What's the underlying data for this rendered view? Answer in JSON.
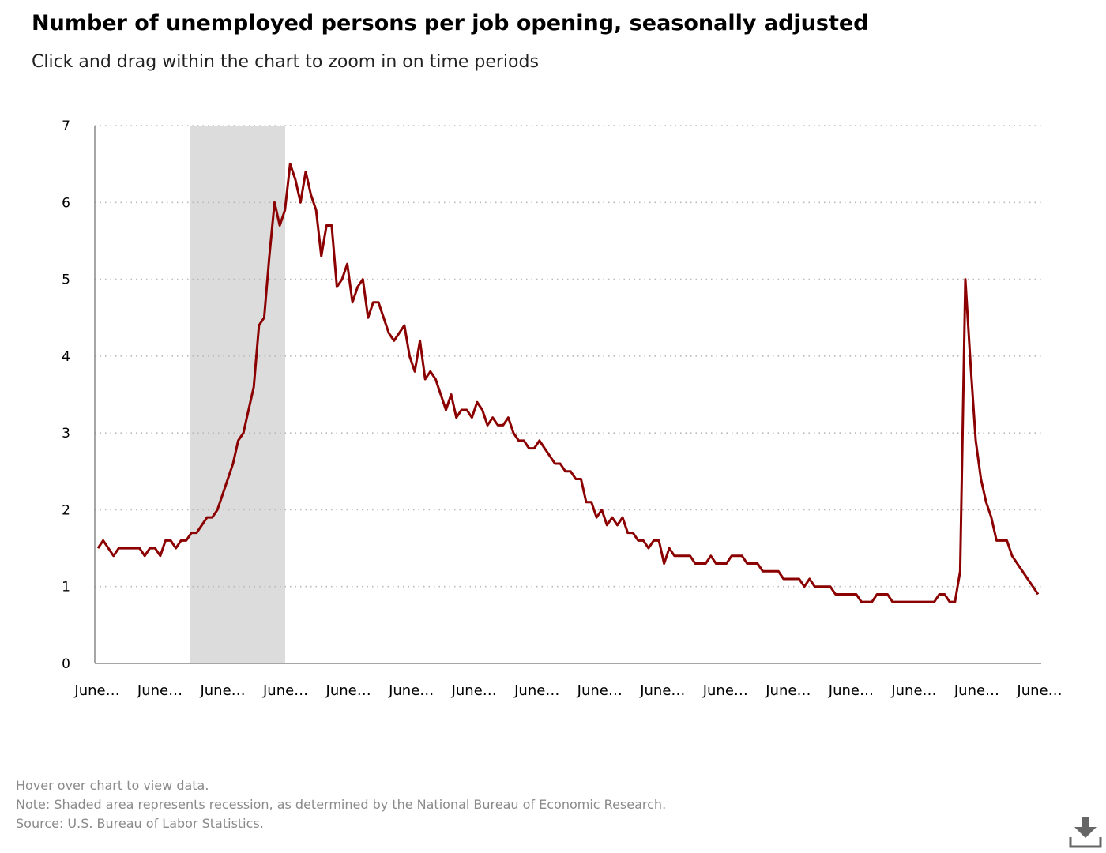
{
  "title": "Number of unemployed persons per job opening, seasonally adjusted",
  "subtitle": "Click and drag within the chart to zoom in on time periods",
  "notes": {
    "hover": "Hover over chart to view data.",
    "note": "Note: Shaded area represents recession, as determined by the National Bureau of Economic Research.",
    "source": "Source: U.S. Bureau of Labor Statistics."
  },
  "icons": {
    "download": "download-icon"
  },
  "colors": {
    "line": "#8b0000",
    "recession": "#dcdcdc",
    "grid": "#b8b8b8",
    "axis": "#888888"
  },
  "chart_data": {
    "type": "line",
    "title": "Number of unemployed persons per job opening, seasonally adjusted",
    "ylim": [
      0,
      7
    ],
    "y_ticks": [
      0,
      1,
      2,
      3,
      4,
      5,
      6,
      7
    ],
    "x_tick_labels": [
      "June…",
      "June…",
      "June…",
      "June…",
      "June…",
      "June…",
      "June…",
      "June…",
      "June…",
      "June…",
      "June…",
      "June…",
      "June…",
      "June…",
      "June…",
      "June…"
    ],
    "grid": true,
    "recession_shading": {
      "start_index": 18,
      "end_index": 36
    },
    "series": [
      {
        "values": [
          1.5,
          1.6,
          1.5,
          1.4,
          1.5,
          1.5,
          1.5,
          1.5,
          1.5,
          1.4,
          1.5,
          1.5,
          1.4,
          1.6,
          1.6,
          1.5,
          1.6,
          1.6,
          1.7,
          1.7,
          1.8,
          1.9,
          1.9,
          2.0,
          2.2,
          2.4,
          2.6,
          2.9,
          3.0,
          3.3,
          3.6,
          4.4,
          4.5,
          5.3,
          6.0,
          5.7,
          5.9,
          6.5,
          6.3,
          6.0,
          6.4,
          6.1,
          5.9,
          5.3,
          5.7,
          5.7,
          4.9,
          5.0,
          5.2,
          4.7,
          4.9,
          5.0,
          4.5,
          4.7,
          4.7,
          4.5,
          4.3,
          4.2,
          4.3,
          4.4,
          4.0,
          3.8,
          4.2,
          3.7,
          3.8,
          3.7,
          3.5,
          3.3,
          3.5,
          3.2,
          3.3,
          3.3,
          3.2,
          3.4,
          3.3,
          3.1,
          3.2,
          3.1,
          3.1,
          3.2,
          3.0,
          2.9,
          2.9,
          2.8,
          2.8,
          2.9,
          2.8,
          2.7,
          2.6,
          2.6,
          2.5,
          2.5,
          2.4,
          2.4,
          2.1,
          2.1,
          1.9,
          2.0,
          1.8,
          1.9,
          1.8,
          1.9,
          1.7,
          1.7,
          1.6,
          1.6,
          1.5,
          1.6,
          1.6,
          1.3,
          1.5,
          1.4,
          1.4,
          1.4,
          1.4,
          1.3,
          1.3,
          1.3,
          1.4,
          1.3,
          1.3,
          1.3,
          1.4,
          1.4,
          1.4,
          1.3,
          1.3,
          1.3,
          1.2,
          1.2,
          1.2,
          1.2,
          1.1,
          1.1,
          1.1,
          1.1,
          1.0,
          1.1,
          1.0,
          1.0,
          1.0,
          1.0,
          0.9,
          0.9,
          0.9,
          0.9,
          0.9,
          0.8,
          0.8,
          0.8,
          0.9,
          0.9,
          0.9,
          0.8,
          0.8,
          0.8,
          0.8,
          0.8,
          0.8,
          0.8,
          0.8,
          0.8,
          0.9,
          0.9,
          0.8,
          0.8,
          1.2,
          5.0,
          3.9,
          2.9,
          2.4,
          2.1,
          1.9,
          1.6,
          1.6,
          1.6,
          1.4,
          1.3,
          1.2,
          1.1,
          1.0,
          0.9
        ]
      }
    ]
  }
}
